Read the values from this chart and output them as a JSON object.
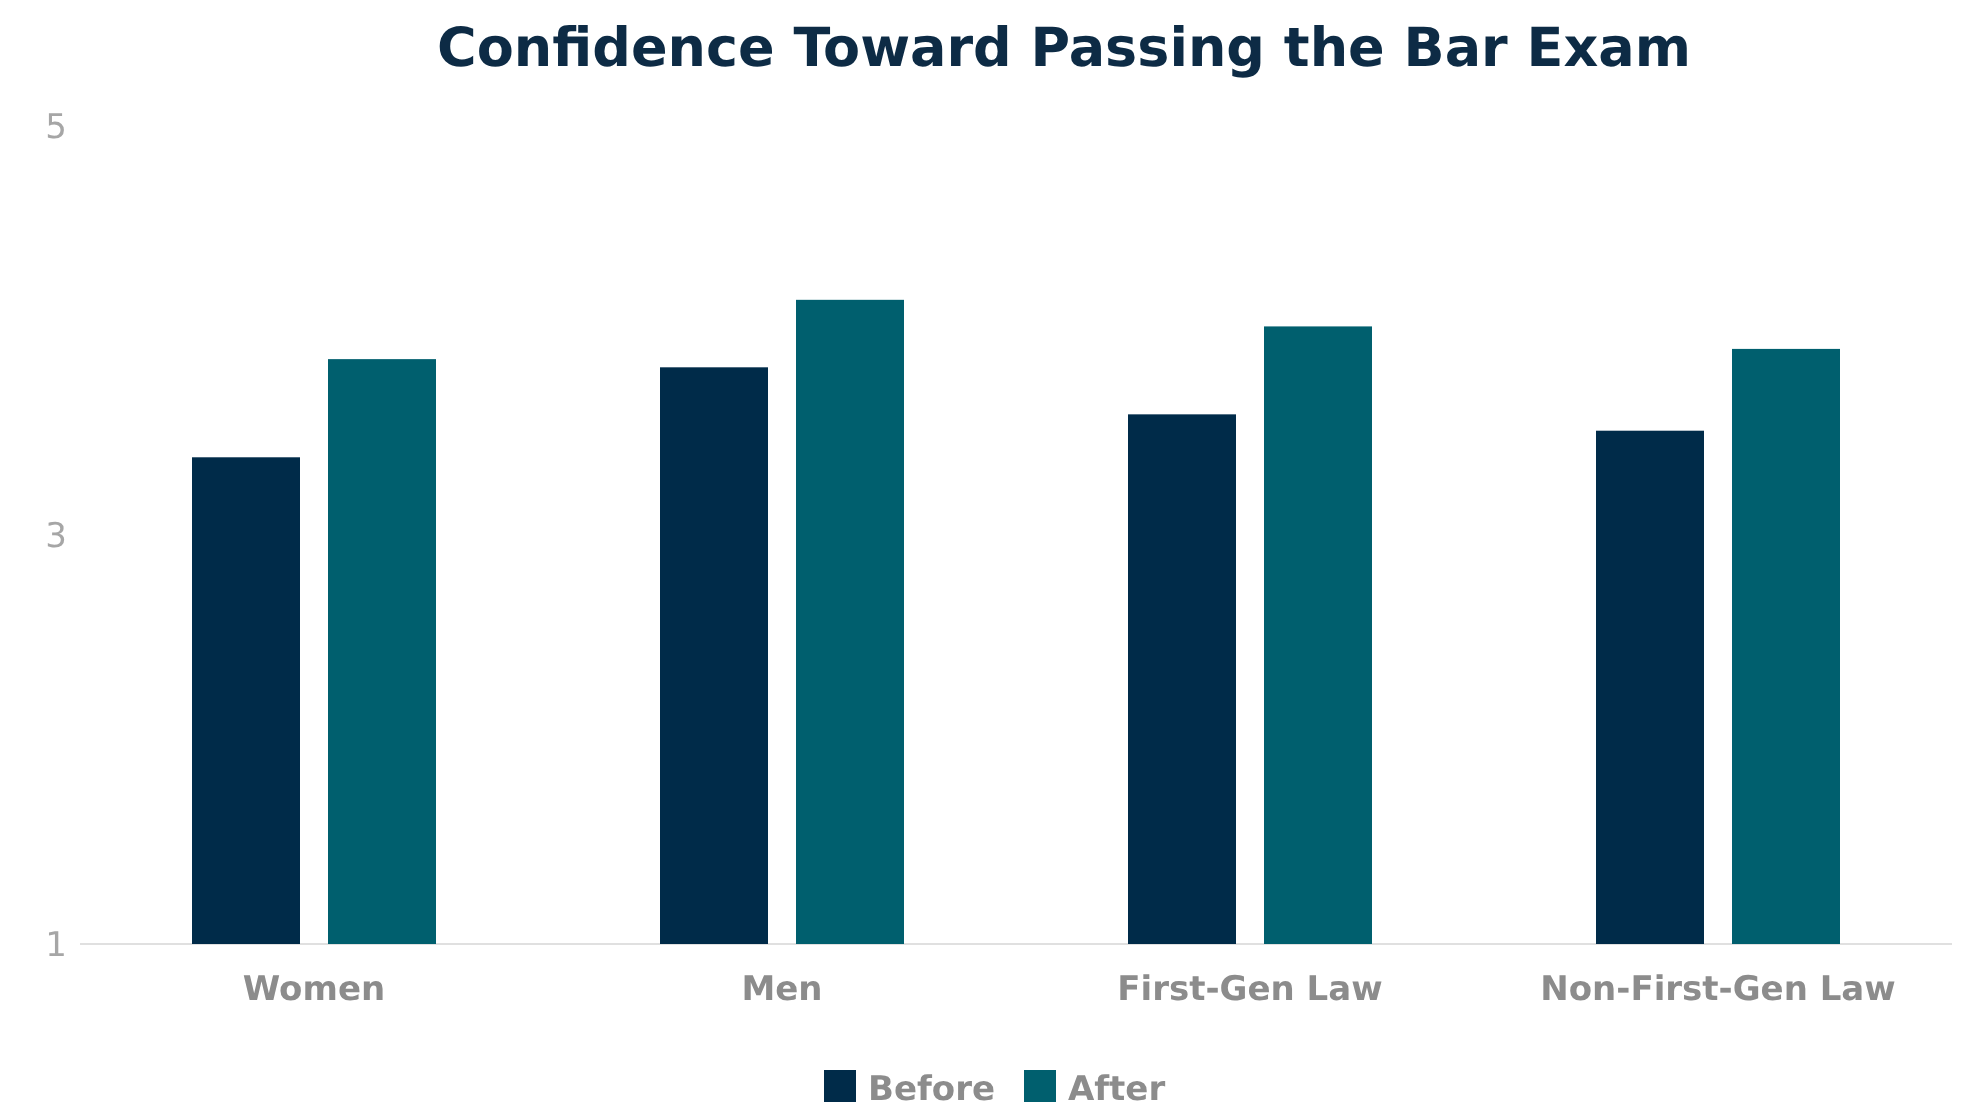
{
  "chart_data": {
    "type": "bar",
    "title": "Confidence Toward Passing the Bar Exam",
    "categories": [
      "Women",
      "Men",
      "First-Gen Law",
      "Non-First-Gen Law"
    ],
    "series": [
      {
        "name": "Before",
        "color": "#002b49",
        "values": [
          3.38,
          3.82,
          3.59,
          3.51
        ]
      },
      {
        "name": "After",
        "color": "#005f6e",
        "values": [
          3.86,
          4.15,
          4.02,
          3.91
        ]
      }
    ],
    "ylim": [
      1,
      5
    ],
    "yticks": [
      1,
      3,
      5
    ],
    "grid": false,
    "legend": "bottom"
  }
}
